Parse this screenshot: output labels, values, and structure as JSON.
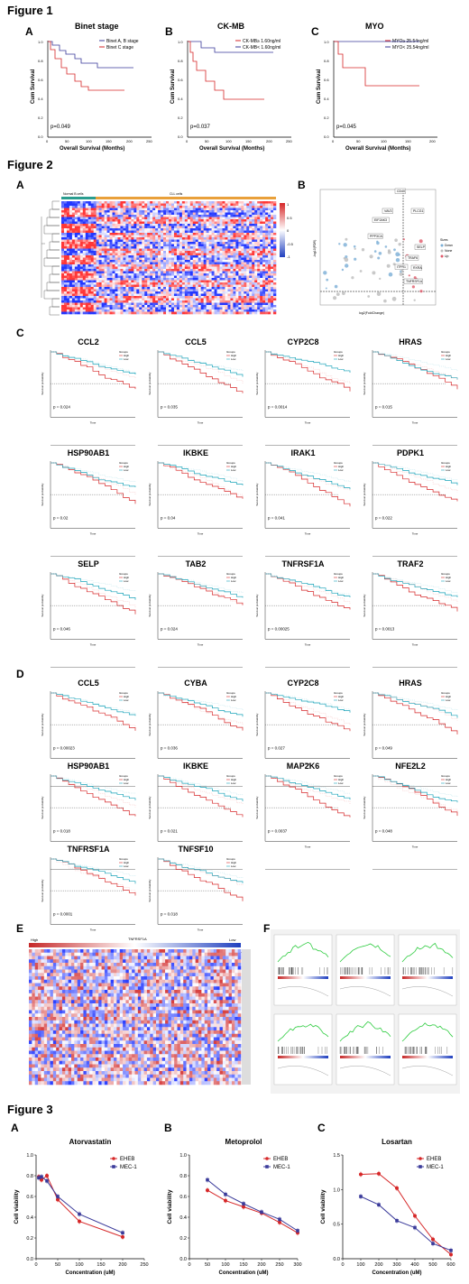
{
  "figures": {
    "fig1": "Figure 1",
    "fig2": "Figure 2",
    "fig3": "Figure 3"
  },
  "fig1": {
    "A": {
      "label": "A",
      "title": "Binet stage",
      "legend": [
        "Binet A, B stage",
        "Binet C stage"
      ],
      "p": "p=0.049",
      "ylabel": "Cum Survival",
      "xlabel": "Overall Survival (Months)",
      "xticks": [
        "0",
        "50",
        "100",
        "150",
        "200",
        "250"
      ],
      "yticks": [
        "0.0",
        "0.2",
        "0.4",
        "0.6",
        "0.8",
        "1.0"
      ]
    },
    "B": {
      "label": "B",
      "title": "CK-MB",
      "legend": [
        "CK-MB≥ 1.60ng/ml",
        "CK-MB< 1.60ng/ml"
      ],
      "p": "p=0.037",
      "ylabel": "Cum Survival",
      "xlabel": "Overall Survival (Months)",
      "xticks": [
        "0",
        "50",
        "100",
        "150",
        "200",
        "250"
      ],
      "yticks": [
        "0.0",
        "0.2",
        "0.4",
        "0.6",
        "0.8",
        "1.0"
      ]
    },
    "C": {
      "label": "C",
      "title": "MYO",
      "legend": [
        "MYO≥ 25.54ng/ml",
        "MYO< 25.54ng/ml"
      ],
      "p": "p=0.045",
      "ylabel": "Cum Survival",
      "xlabel": "Overall Survival (Months)",
      "xticks": [
        "0",
        "50",
        "100",
        "150",
        "200"
      ],
      "yticks": [
        "0.0",
        "0.2",
        "0.4",
        "0.6",
        "0.8",
        "1.0"
      ]
    }
  },
  "fig2": {
    "A": {
      "label": "A",
      "normal": "Normal B cells",
      "cll": "CLL cells",
      "scale": [
        "1",
        "0.5",
        "0",
        "-0.5",
        "-1"
      ]
    },
    "B": {
      "label": "B",
      "xlabel": "log2(FoldChange)",
      "ylabel": "-log10(FDR)",
      "legend_title": "Sizes",
      "legend": [
        "Down",
        "None",
        "Up"
      ],
      "genes": [
        "CD40",
        "VAV3",
        "PLCG1",
        "EIF2AK3",
        "PPP3CA",
        "SELP",
        "TRAF6",
        "RXRA",
        "ITPR1",
        "TNFRSF1A"
      ]
    },
    "C": {
      "label": "C",
      "panels": [
        {
          "gene": "CCL2",
          "p": "p = 0.024"
        },
        {
          "gene": "CCL5",
          "p": "p = 0.035"
        },
        {
          "gene": "CYP2C8",
          "p": "p = 0.0014"
        },
        {
          "gene": "HRAS",
          "p": "p = 0.015"
        },
        {
          "gene": "HSP90AB1",
          "p": "p = 0.02"
        },
        {
          "gene": "IKBKE",
          "p": "p = 0.04"
        },
        {
          "gene": "IRAK1",
          "p": "p = 0.041"
        },
        {
          "gene": "PDPK1",
          "p": "p = 0.022"
        },
        {
          "gene": "SELP",
          "p": "p = 0.046"
        },
        {
          "gene": "TAB2",
          "p": "p = 0.024"
        },
        {
          "gene": "TNFRSF1A",
          "p": "p = 0.00025"
        },
        {
          "gene": "TRAF2",
          "p": "p = 0.0013"
        }
      ]
    },
    "D": {
      "label": "D",
      "panels": [
        {
          "gene": "CCL5",
          "p": "p = 0.00023"
        },
        {
          "gene": "CYBA",
          "p": "p = 0.036"
        },
        {
          "gene": "CYP2C8",
          "p": "p = 0.027"
        },
        {
          "gene": "HRAS",
          "p": "p = 0.049"
        },
        {
          "gene": "HSP90AB1",
          "p": "p = 0.018"
        },
        {
          "gene": "IKBKE",
          "p": "p = 0.021"
        },
        {
          "gene": "MAP2K6",
          "p": "p = 0.0037"
        },
        {
          "gene": "NFE2L2",
          "p": "p = 0.048"
        },
        {
          "gene": "TNFRSF1A",
          "p": "p = 0.0001"
        },
        {
          "gene": "TNFSF10",
          "p": "p = 0.018"
        }
      ]
    },
    "km_legend_title": "Groups",
    "km_legend": [
      "High",
      "Low"
    ],
    "km_ylabel": "Survival probability",
    "km_xlabel": "Time",
    "E": {
      "label": "E",
      "high": "High",
      "low": "Low",
      "gene": "TNFRSF1A"
    },
    "F": {
      "label": "F",
      "ylabel": "Enrichment score"
    }
  },
  "fig3": {
    "ylabel": "Cell viability",
    "xlabel": "Concentration (uM)",
    "legend": [
      "EHEB",
      "MEC-1"
    ],
    "colors": {
      "EHEB": "#d62728",
      "MEC1": "#3a3a9a"
    },
    "panels": [
      {
        "label": "A",
        "title": "Atorvastatin",
        "ylim": [
          0,
          1.0
        ],
        "yticks": [
          "0.0",
          "0.2",
          "0.4",
          "0.6",
          "0.8",
          "1.0"
        ],
        "xlim": [
          0,
          250
        ],
        "xticks": [
          "0",
          "50",
          "100",
          "150",
          "200",
          "250"
        ]
      },
      {
        "label": "B",
        "title": "Metoprolol",
        "ylim": [
          0,
          1.0
        ],
        "yticks": [
          "0.0",
          "0.2",
          "0.4",
          "0.6",
          "0.8",
          "1.0"
        ],
        "xlim": [
          0,
          300
        ],
        "xticks": [
          "0",
          "50",
          "100",
          "150",
          "200",
          "250",
          "300"
        ]
      },
      {
        "label": "C",
        "title": "Losartan",
        "ylim": [
          0,
          1.5
        ],
        "yticks": [
          "0.0",
          "0.5",
          "1.0",
          "1.5"
        ],
        "xlim": [
          0,
          600
        ],
        "xticks": [
          "0",
          "100",
          "200",
          "300",
          "400",
          "500",
          "600"
        ]
      }
    ]
  },
  "chart_data": [
    {
      "type": "line",
      "title": "Atorvastatin",
      "xlabel": "Concentration (uM)",
      "ylabel": "Cell viability",
      "ylim": [
        0,
        1.0
      ],
      "series": [
        {
          "name": "EHEB",
          "x": [
            6.25,
            12.5,
            25,
            50,
            100,
            200
          ],
          "values": [
            0.79,
            0.76,
            0.8,
            0.57,
            0.36,
            0.21
          ]
        },
        {
          "name": "MEC-1",
          "x": [
            6.25,
            12.5,
            25,
            50,
            100,
            200
          ],
          "values": [
            0.78,
            0.79,
            0.75,
            0.6,
            0.43,
            0.25
          ]
        }
      ]
    },
    {
      "type": "line",
      "title": "Metoprolol",
      "xlabel": "Concentration (uM)",
      "ylabel": "Cell viability",
      "ylim": [
        0,
        1.0
      ],
      "series": [
        {
          "name": "EHEB",
          "x": [
            50,
            100,
            150,
            200,
            250,
            300
          ],
          "values": [
            0.66,
            0.56,
            0.5,
            0.44,
            0.35,
            0.25
          ]
        },
        {
          "name": "MEC-1",
          "x": [
            50,
            100,
            150,
            200,
            250,
            300
          ],
          "values": [
            0.76,
            0.62,
            0.53,
            0.45,
            0.38,
            0.27
          ]
        }
      ]
    },
    {
      "type": "line",
      "title": "Losartan",
      "xlabel": "Concentration (uM)",
      "ylabel": "Cell viability",
      "ylim": [
        0,
        1.5
      ],
      "series": [
        {
          "name": "EHEB",
          "x": [
            100,
            200,
            300,
            400,
            500,
            600
          ],
          "values": [
            1.22,
            1.23,
            1.02,
            0.62,
            0.28,
            0.06
          ]
        },
        {
          "name": "MEC-1",
          "x": [
            100,
            200,
            300,
            400,
            500,
            600
          ],
          "values": [
            0.9,
            0.78,
            0.55,
            0.45,
            0.22,
            0.12
          ]
        }
      ]
    }
  ]
}
